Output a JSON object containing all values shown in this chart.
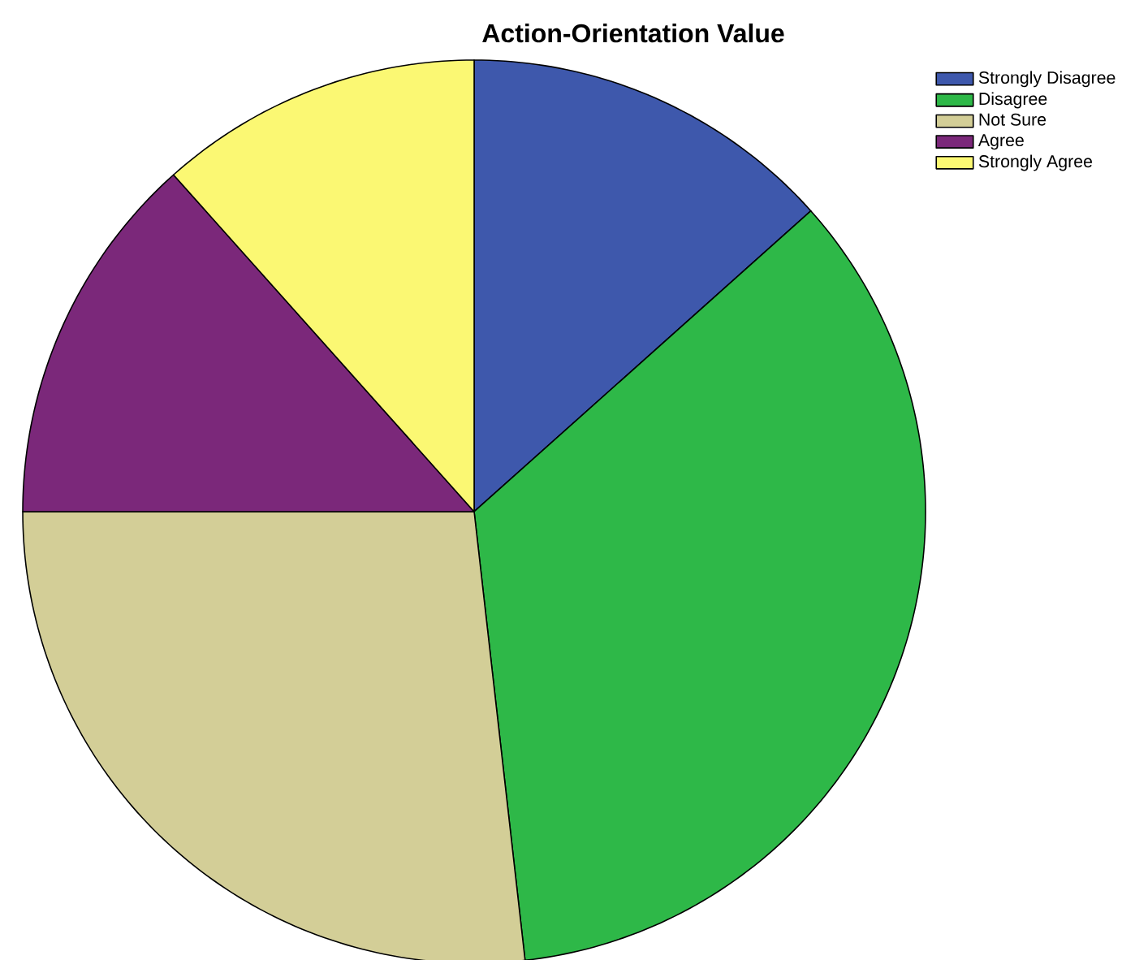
{
  "chart_data": {
    "type": "pie",
    "title": "Action-Orientation Value",
    "categories": [
      "Strongly Disagree",
      "Disagree",
      "Not Sure",
      "Agree",
      "Strongly Agree"
    ],
    "values": [
      13.4,
      34.8,
      26.8,
      13.4,
      11.6
    ],
    "colors": [
      "#3e58ac",
      "#2eb848",
      "#d3ce97",
      "#7b287a",
      "#fbf873"
    ],
    "legend": "top right"
  }
}
